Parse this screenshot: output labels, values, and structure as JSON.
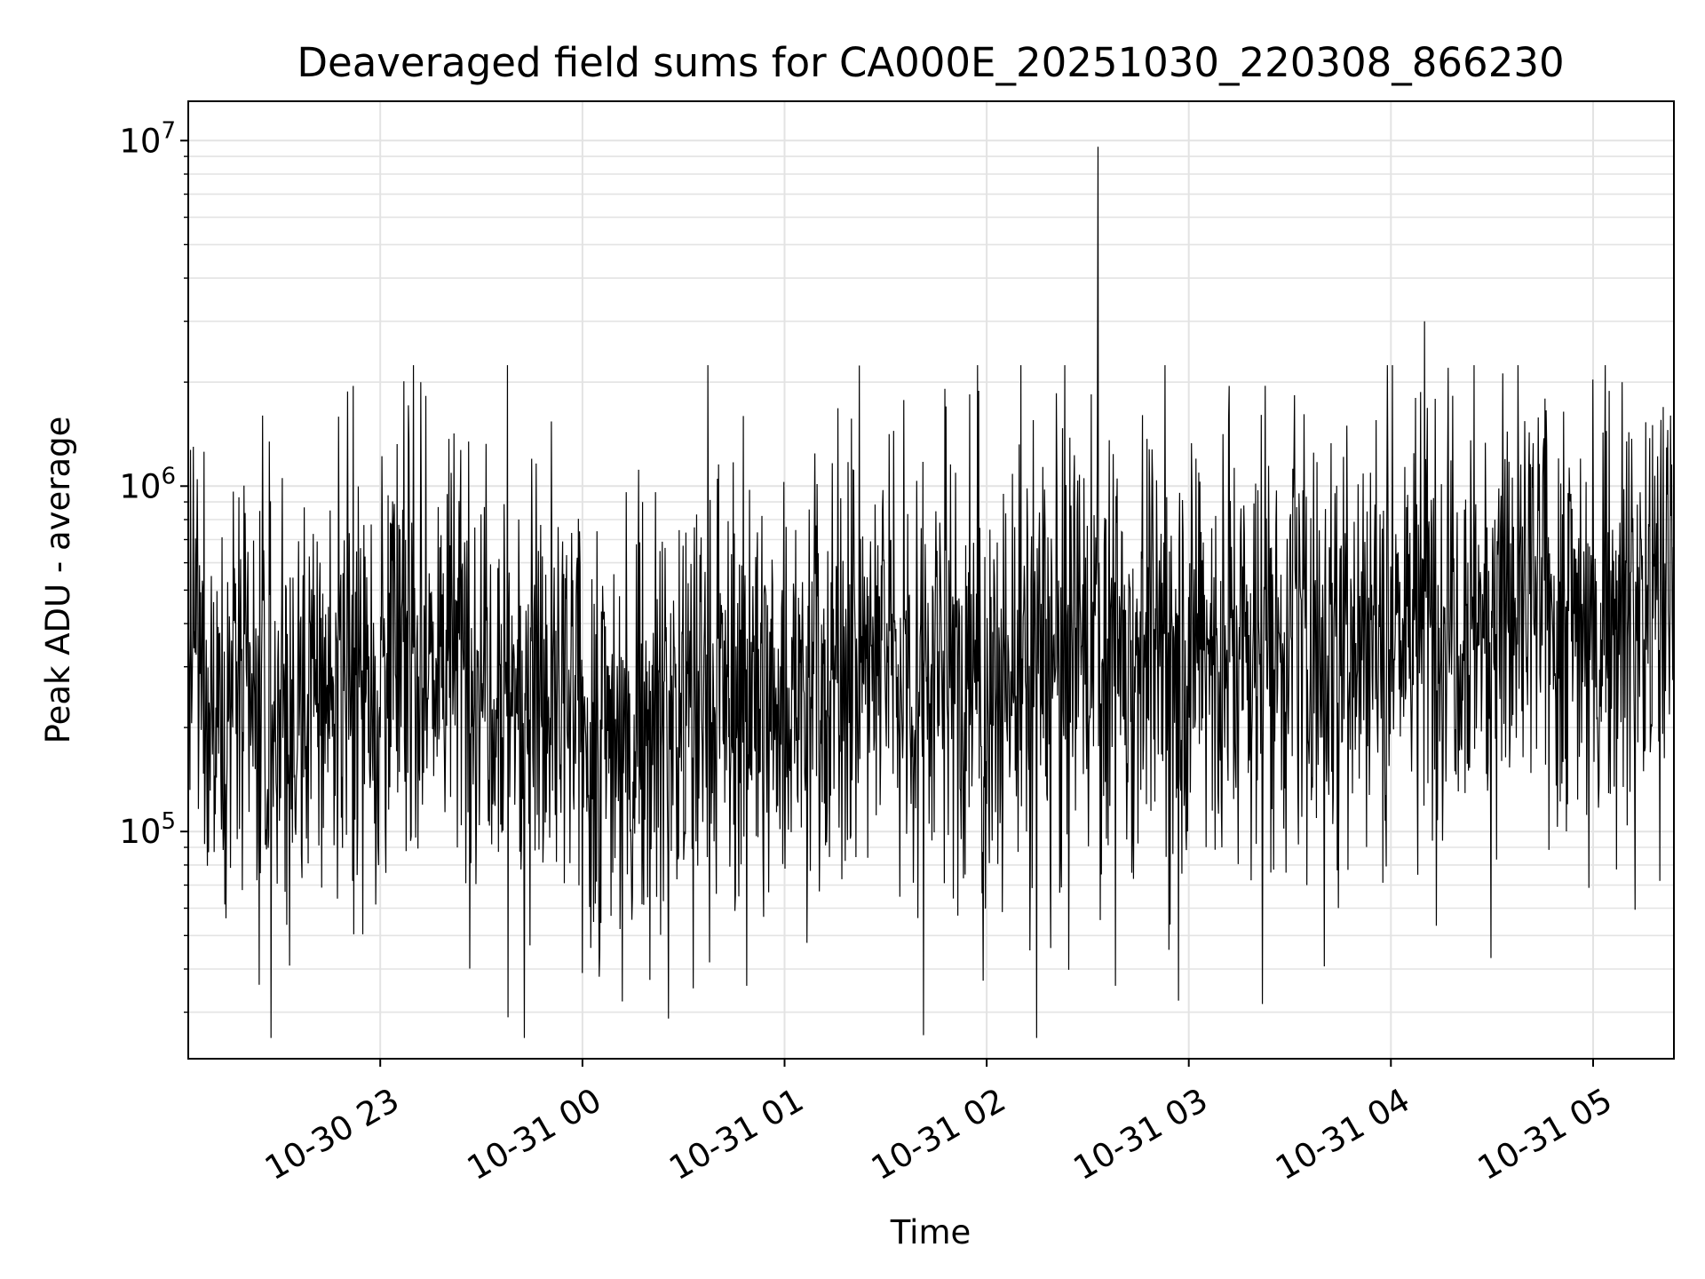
{
  "chart_data": {
    "type": "line",
    "title": "Deaveraged field sums for CA000E_20251030_220308_866230",
    "xlabel": "Time",
    "ylabel": "Peak ADU - average",
    "y_scale": "log",
    "ylim": [
      22000,
      13000000
    ],
    "xlim": [
      "2025-10-30 22:03",
      "2025-10-31 05:24"
    ],
    "x_ticks": [
      {
        "time": "2025-10-30 23:00",
        "label": "10-30 23"
      },
      {
        "time": "2025-10-31 00:00",
        "label": "10-31 00"
      },
      {
        "time": "2025-10-31 01:00",
        "label": "10-31 01"
      },
      {
        "time": "2025-10-31 02:00",
        "label": "10-31 02"
      },
      {
        "time": "2025-10-31 03:00",
        "label": "10-31 03"
      },
      {
        "time": "2025-10-31 04:00",
        "label": "10-31 04"
      },
      {
        "time": "2025-10-31 05:00",
        "label": "10-31 05"
      }
    ],
    "y_ticks": [
      {
        "value": 100000,
        "base": "10",
        "exp": "5"
      },
      {
        "value": 1000000,
        "base": "10",
        "exp": "6"
      },
      {
        "value": 10000000,
        "base": "10",
        "exp": "7"
      }
    ],
    "grid": true,
    "line_color": "#000000",
    "series": [
      {
        "style": "noisy",
        "anchor_times": [
          "2025-10-30 22:03",
          "2025-10-30 22:30",
          "2025-10-30 23:00",
          "2025-10-30 23:30",
          "2025-10-31 00:00",
          "2025-10-31 00:30",
          "2025-10-31 01:00",
          "2025-10-31 01:30",
          "2025-10-31 02:00",
          "2025-10-31 02:30",
          "2025-10-31 03:00",
          "2025-10-31 03:30",
          "2025-10-31 04:00",
          "2025-10-31 04:30",
          "2025-10-31 05:00",
          "2025-10-31 05:24"
        ],
        "anchor_values": [
          300000,
          220000,
          320000,
          330000,
          200000,
          230000,
          250000,
          330000,
          250000,
          350000,
          340000,
          380000,
          420000,
          460000,
          450000,
          480000
        ],
        "peaks": [
          {
            "time": "2025-10-30 22:25",
            "value": 1600000
          },
          {
            "time": "2025-10-30 22:52",
            "value": 1950000
          },
          {
            "time": "2025-10-30 23:12",
            "value": 2000000
          },
          {
            "time": "2025-10-30 23:45",
            "value": 1200000
          },
          {
            "time": "2025-10-31 01:48",
            "value": 1700000
          },
          {
            "time": "2025-10-31 02:33",
            "value": 9600000
          },
          {
            "time": "2025-10-31 03:12",
            "value": 1950000
          },
          {
            "time": "2025-10-31 04:10",
            "value": 3000000
          },
          {
            "time": "2025-10-31 04:17",
            "value": 2200000
          },
          {
            "time": "2025-10-31 05:23",
            "value": 1600000
          }
        ],
        "troughs": [
          {
            "time": "2025-10-30 22:24",
            "value": 36000
          },
          {
            "time": "2025-10-30 23:38",
            "value": 29000
          },
          {
            "time": "2025-10-31 00:05",
            "value": 38000
          },
          {
            "time": "2025-10-31 01:59",
            "value": 37000
          },
          {
            "time": "2025-10-31 02:19",
            "value": 46000
          },
          {
            "time": "2025-10-31 03:35",
            "value": 70000
          },
          {
            "time": "2025-10-31 04:08",
            "value": 75000
          }
        ]
      }
    ]
  }
}
